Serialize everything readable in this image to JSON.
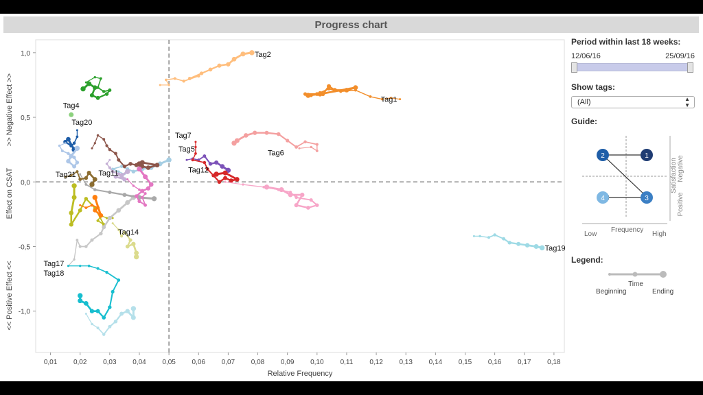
{
  "page_title": "Progress chart",
  "filters": {
    "period_label": "Period within last 18 weeks:",
    "start_date": "12/06/16",
    "end_date": "25/09/16",
    "tags_label": "Show tags:",
    "tags_value": "(All)"
  },
  "guide": {
    "title": "Guide:",
    "x_label": "Frequency",
    "x_low": "Low",
    "x_high": "High",
    "y_label": "Satisfaction",
    "y_negative": "Negative",
    "y_positive": "Positive",
    "quadrant_numbers": [
      "1",
      "2",
      "3",
      "4"
    ],
    "colors": {
      "q1": "#1f3c73",
      "q2": "#1f5ea8",
      "q3": "#3b7fc4",
      "q4": "#7fb8e3"
    }
  },
  "legend": {
    "title": "Legend:",
    "time_label": "Time",
    "beginning_label": "Beginning",
    "ending_label": "Ending"
  },
  "chart_data": {
    "type": "line",
    "xlabel": "Relative Frequency",
    "ylabel_left": "<< Positive Effect <<",
    "ylabel_mid": "Effect on CSAT",
    "ylabel_right": ">> Negative Effect >>",
    "xlim": [
      0.005,
      0.1835
    ],
    "ylim": [
      -1.32,
      1.1
    ],
    "x_ticks": [
      0.01,
      0.02,
      0.03,
      0.04,
      0.05,
      0.06,
      0.07,
      0.08,
      0.09,
      0.1,
      0.11,
      0.12,
      0.13,
      0.14,
      0.15,
      0.16,
      0.17,
      0.18
    ],
    "x_tick_labels": [
      "0,01",
      "0,02",
      "0,03",
      "0,04",
      "0,05",
      "0,06",
      "0,07",
      "0,08",
      "0,09",
      "0,10",
      "0,11",
      "0,12",
      "0,13",
      "0,14",
      "0,15",
      "0,16",
      "0,17",
      "0,18"
    ],
    "y_ticks": [
      1.0,
      0.5,
      0.0,
      -0.5,
      -1.0
    ],
    "y_tick_labels": [
      "1,0",
      "0,5",
      "0,0",
      "-0,5",
      "-1,0"
    ],
    "reference_lines": {
      "x": 0.05,
      "y": 0.0
    },
    "series": [
      {
        "name": "Tag1",
        "color": "#f28e2b",
        "points": [
          [
            0.128,
            0.64
          ],
          [
            0.125,
            0.65
          ],
          [
            0.122,
            0.64
          ],
          [
            0.118,
            0.66
          ],
          [
            0.113,
            0.71
          ],
          [
            0.108,
            0.7
          ],
          [
            0.104,
            0.72
          ],
          [
            0.101,
            0.69
          ],
          [
            0.098,
            0.67
          ],
          [
            0.096,
            0.68
          ],
          [
            0.1,
            0.68
          ],
          [
            0.102,
            0.68
          ],
          [
            0.104,
            0.74
          ],
          [
            0.106,
            0.71
          ],
          [
            0.11,
            0.71
          ],
          [
            0.113,
            0.73
          ],
          [
            0.101,
            0.68
          ],
          [
            0.097,
            0.67
          ]
        ]
      },
      {
        "name": "Tag2",
        "color": "#ffbe7d",
        "points": [
          [
            0.047,
            0.75
          ],
          [
            0.05,
            0.75
          ],
          [
            0.049,
            0.79
          ],
          [
            0.052,
            0.8
          ],
          [
            0.055,
            0.78
          ],
          [
            0.06,
            0.82
          ],
          [
            0.057,
            0.8
          ],
          [
            0.061,
            0.84
          ],
          [
            0.064,
            0.87
          ],
          [
            0.067,
            0.9
          ],
          [
            0.07,
            0.91
          ],
          [
            0.072,
            0.95
          ],
          [
            0.075,
            0.99
          ],
          [
            0.078,
            1.0
          ]
        ]
      },
      {
        "name": "Tag4",
        "color": "#8cd17d",
        "points": [
          [
            0.017,
            0.52
          ]
        ]
      },
      {
        "name": "Tag5",
        "color": "#7c52b8",
        "points": [
          [
            0.056,
            0.17
          ],
          [
            0.058,
            0.18
          ],
          [
            0.06,
            0.17
          ],
          [
            0.062,
            0.2
          ],
          [
            0.064,
            0.14
          ],
          [
            0.066,
            0.15
          ],
          [
            0.068,
            0.12
          ],
          [
            0.07,
            0.09
          ]
        ]
      },
      {
        "name": "Tag6",
        "color": "#f4a0a0",
        "points": [
          [
            0.094,
            0.26
          ],
          [
            0.098,
            0.27
          ],
          [
            0.1,
            0.24
          ],
          [
            0.1,
            0.29
          ],
          [
            0.096,
            0.31
          ],
          [
            0.093,
            0.27
          ],
          [
            0.09,
            0.32
          ],
          [
            0.087,
            0.37
          ],
          [
            0.083,
            0.38
          ],
          [
            0.079,
            0.38
          ],
          [
            0.076,
            0.36
          ],
          [
            0.073,
            0.32
          ],
          [
            0.072,
            0.3
          ]
        ]
      },
      {
        "name": "Tag7",
        "color": "#d62728",
        "points": [
          [
            0.059,
            0.31
          ],
          [
            0.059,
            0.27
          ],
          [
            0.059,
            0.22
          ],
          [
            0.058,
            0.17
          ],
          [
            0.062,
            0.15
          ],
          [
            0.063,
            0.1
          ],
          [
            0.065,
            0.05
          ],
          [
            0.067,
            0.0
          ],
          [
            0.069,
            0.03
          ],
          [
            0.071,
            0.01
          ],
          [
            0.073,
            0.02
          ],
          [
            0.069,
            0.07
          ],
          [
            0.066,
            0.06
          ]
        ]
      },
      {
        "name": "Tag11",
        "color": "#a6cee3",
        "points": [
          [
            0.035,
            0.06
          ],
          [
            0.033,
            0.08
          ],
          [
            0.031,
            0.1
          ],
          [
            0.034,
            0.12
          ],
          [
            0.036,
            0.1
          ],
          [
            0.038,
            0.08
          ],
          [
            0.041,
            0.1
          ],
          [
            0.044,
            0.11
          ],
          [
            0.047,
            0.14
          ],
          [
            0.05,
            0.17
          ]
        ]
      },
      {
        "name": "Tag12",
        "color": "#f7a6c8",
        "points": [
          [
            0.069,
            0.0
          ],
          [
            0.075,
            -0.02
          ],
          [
            0.082,
            -0.04
          ],
          [
            0.087,
            -0.06
          ],
          [
            0.091,
            -0.08
          ],
          [
            0.093,
            -0.12
          ],
          [
            0.098,
            -0.14
          ],
          [
            0.1,
            -0.18
          ],
          [
            0.097,
            -0.2
          ],
          [
            0.093,
            -0.18
          ],
          [
            0.095,
            -0.1
          ],
          [
            0.091,
            -0.1
          ],
          [
            0.088,
            -0.06
          ],
          [
            0.083,
            -0.04
          ]
        ]
      },
      {
        "name": "Tag14",
        "color": "#bcbd22",
        "points": [
          [
            0.031,
            -0.28
          ],
          [
            0.029,
            -0.28
          ],
          [
            0.027,
            -0.26
          ],
          [
            0.026,
            -0.3
          ],
          [
            0.028,
            -0.33
          ],
          [
            0.025,
            -0.2
          ],
          [
            0.022,
            -0.13
          ],
          [
            0.02,
            -0.22
          ],
          [
            0.017,
            -0.33
          ],
          [
            0.017,
            -0.24
          ],
          [
            0.018,
            -0.12
          ],
          [
            0.018,
            -0.03
          ]
        ]
      },
      {
        "name": "Tag17",
        "color": "#c7c7c7",
        "points": [
          [
            0.016,
            -0.65
          ],
          [
            0.018,
            -0.6
          ],
          [
            0.019,
            -0.45
          ],
          [
            0.02,
            -0.5
          ],
          [
            0.022,
            -0.5
          ],
          [
            0.024,
            -0.45
          ],
          [
            0.027,
            -0.4
          ],
          [
            0.028,
            -0.35
          ],
          [
            0.03,
            -0.28
          ],
          [
            0.033,
            -0.22
          ],
          [
            0.036,
            -0.16
          ],
          [
            0.038,
            -0.12
          ]
        ]
      },
      {
        "name": "Tag18",
        "color": "#17becf",
        "points": [
          [
            0.016,
            -0.65
          ],
          [
            0.02,
            -0.65
          ],
          [
            0.023,
            -0.65
          ],
          [
            0.026,
            -0.67
          ],
          [
            0.029,
            -0.7
          ],
          [
            0.033,
            -0.76
          ],
          [
            0.031,
            -0.85
          ],
          [
            0.03,
            -0.97
          ],
          [
            0.028,
            -1.05
          ],
          [
            0.026,
            -1.0
          ],
          [
            0.024,
            -1.0
          ],
          [
            0.022,
            -0.94
          ],
          [
            0.02,
            -0.92
          ],
          [
            0.02,
            -0.88
          ]
        ]
      },
      {
        "name": "Tag19",
        "color": "#9edae5",
        "points": [
          [
            0.153,
            -0.42
          ],
          [
            0.155,
            -0.42
          ],
          [
            0.158,
            -0.43
          ],
          [
            0.16,
            -0.41
          ],
          [
            0.163,
            -0.44
          ],
          [
            0.165,
            -0.47
          ],
          [
            0.168,
            -0.48
          ],
          [
            0.171,
            -0.49
          ],
          [
            0.174,
            -0.5
          ],
          [
            0.176,
            -0.51
          ]
        ]
      },
      {
        "name": "Tag20",
        "color": "#1f5ea8",
        "points": [
          [
            0.019,
            0.4
          ],
          [
            0.019,
            0.35
          ],
          [
            0.018,
            0.3
          ],
          [
            0.017,
            0.28
          ],
          [
            0.015,
            0.31
          ],
          [
            0.016,
            0.33
          ],
          [
            0.018,
            0.25
          ]
        ]
      },
      {
        "name": "Tag21",
        "color": "#a9a9a9",
        "points": [
          [
            0.02,
            0.06
          ],
          [
            0.022,
            -0.02
          ],
          [
            0.025,
            -0.06
          ],
          [
            0.03,
            -0.08
          ],
          [
            0.035,
            -0.1
          ],
          [
            0.04,
            -0.12
          ],
          [
            0.045,
            -0.13
          ]
        ]
      },
      {
        "name": "",
        "color": "#2ca02c",
        "points": [
          [
            0.022,
            0.77
          ],
          [
            0.025,
            0.81
          ],
          [
            0.027,
            0.8
          ],
          [
            0.026,
            0.73
          ],
          [
            0.028,
            0.7
          ],
          [
            0.03,
            0.71
          ],
          [
            0.029,
            0.68
          ],
          [
            0.026,
            0.65
          ],
          [
            0.024,
            0.67
          ],
          [
            0.025,
            0.73
          ],
          [
            0.023,
            0.76
          ],
          [
            0.021,
            0.72
          ]
        ]
      },
      {
        "name": "",
        "color": "#aec7e8",
        "points": [
          [
            0.015,
            0.3
          ],
          [
            0.013,
            0.28
          ],
          [
            0.014,
            0.24
          ],
          [
            0.016,
            0.22
          ],
          [
            0.018,
            0.19
          ],
          [
            0.019,
            0.15
          ],
          [
            0.018,
            0.12
          ],
          [
            0.016,
            0.16
          ],
          [
            0.017,
            0.2
          ],
          [
            0.019,
            0.26
          ]
        ]
      },
      {
        "name": "",
        "color": "#8c564b",
        "points": [
          [
            0.024,
            0.26
          ],
          [
            0.025,
            0.3
          ],
          [
            0.026,
            0.36
          ],
          [
            0.028,
            0.33
          ],
          [
            0.029,
            0.28
          ],
          [
            0.03,
            0.25
          ],
          [
            0.032,
            0.22
          ],
          [
            0.033,
            0.17
          ],
          [
            0.035,
            0.12
          ],
          [
            0.037,
            0.14
          ],
          [
            0.039,
            0.13
          ],
          [
            0.041,
            0.12
          ],
          [
            0.043,
            0.11
          ],
          [
            0.046,
            0.13
          ],
          [
            0.041,
            0.15
          ],
          [
            0.04,
            0.14
          ]
        ]
      },
      {
        "name": "",
        "color": "#c5b0d5",
        "points": [
          [
            0.03,
            0.17
          ],
          [
            0.029,
            0.14
          ],
          [
            0.03,
            0.11
          ],
          [
            0.031,
            0.08
          ],
          [
            0.033,
            0.06
          ],
          [
            0.032,
            0.04
          ],
          [
            0.035,
            0.02
          ],
          [
            0.034,
            0.05
          ],
          [
            0.036,
            0.08
          ]
        ]
      },
      {
        "name": "",
        "color": "#e377c2",
        "points": [
          [
            0.036,
            0.02
          ],
          [
            0.038,
            -0.03
          ],
          [
            0.04,
            -0.06
          ],
          [
            0.042,
            -0.09
          ],
          [
            0.041,
            -0.12
          ],
          [
            0.042,
            -0.18
          ],
          [
            0.04,
            -0.15
          ],
          [
            0.039,
            -0.11
          ],
          [
            0.041,
            -0.07
          ],
          [
            0.043,
            -0.05
          ],
          [
            0.044,
            -0.02
          ],
          [
            0.042,
            0.04
          ],
          [
            0.04,
            0.1
          ]
        ]
      },
      {
        "name": "",
        "color": "#dbdb8d",
        "points": [
          [
            0.031,
            -0.32
          ],
          [
            0.033,
            -0.37
          ],
          [
            0.034,
            -0.42
          ],
          [
            0.035,
            -0.39
          ],
          [
            0.037,
            -0.45
          ],
          [
            0.036,
            -0.5
          ],
          [
            0.038,
            -0.48
          ],
          [
            0.039,
            -0.55
          ],
          [
            0.039,
            -0.58
          ]
        ]
      },
      {
        "name": "",
        "color": "#8c6d31",
        "points": [
          [
            0.015,
            0.04
          ],
          [
            0.017,
            0.05
          ],
          [
            0.019,
            0.08
          ],
          [
            0.02,
            0.02
          ],
          [
            0.022,
            0.03
          ],
          [
            0.023,
            0.07
          ],
          [
            0.025,
            0.02
          ],
          [
            0.024,
            -0.02
          ]
        ]
      },
      {
        "name": "",
        "color": "#ff7f0e",
        "points": [
          [
            0.02,
            -0.18
          ],
          [
            0.022,
            -0.2
          ],
          [
            0.024,
            -0.18
          ],
          [
            0.026,
            -0.2
          ],
          [
            0.025,
            -0.22
          ],
          [
            0.027,
            -0.26
          ],
          [
            0.025,
            -0.12
          ]
        ]
      },
      {
        "name": "",
        "color": "#b5e0ea",
        "points": [
          [
            0.022,
            -1.02
          ],
          [
            0.024,
            -1.1
          ],
          [
            0.026,
            -1.13
          ],
          [
            0.028,
            -1.18
          ],
          [
            0.03,
            -1.12
          ],
          [
            0.032,
            -1.08
          ],
          [
            0.034,
            -1.02
          ],
          [
            0.036,
            -1.0
          ],
          [
            0.038,
            -1.05
          ],
          [
            0.038,
            -0.98
          ]
        ]
      }
    ]
  }
}
